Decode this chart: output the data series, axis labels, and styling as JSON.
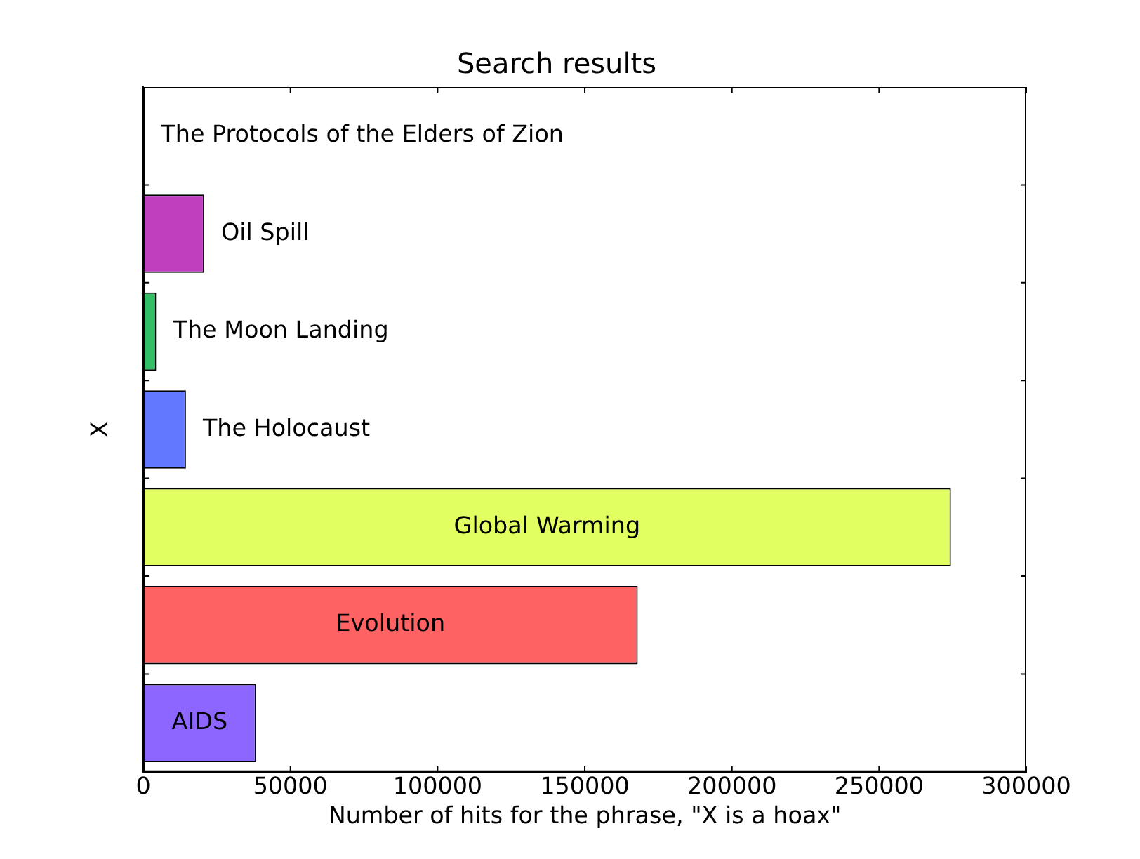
{
  "chart_data": {
    "type": "bar",
    "orientation": "horizontal",
    "title": "Search results",
    "xlabel": "Number of hits for the phrase, \"X is a hoax\"",
    "ylabel": "X",
    "categories": [
      "The Protocols of the Elders of Zion",
      "Oil Spill",
      "The Moon Landing",
      "The Holocaust",
      "Global Warming",
      "Evolution",
      "AIDS"
    ],
    "values": [
      300,
      20700,
      4400,
      14500,
      274400,
      168000,
      38300
    ],
    "colors": [
      "#000000",
      "#bf3fbf",
      "#33bf66",
      "#6278ff",
      "#e2ff62",
      "#ff6262",
      "#8c66ff"
    ],
    "xlim": [
      0,
      300000
    ],
    "xticks": [
      0,
      50000,
      100000,
      150000,
      200000,
      250000,
      300000
    ],
    "grid": false,
    "legend": false,
    "tick_labels": "x"
  }
}
